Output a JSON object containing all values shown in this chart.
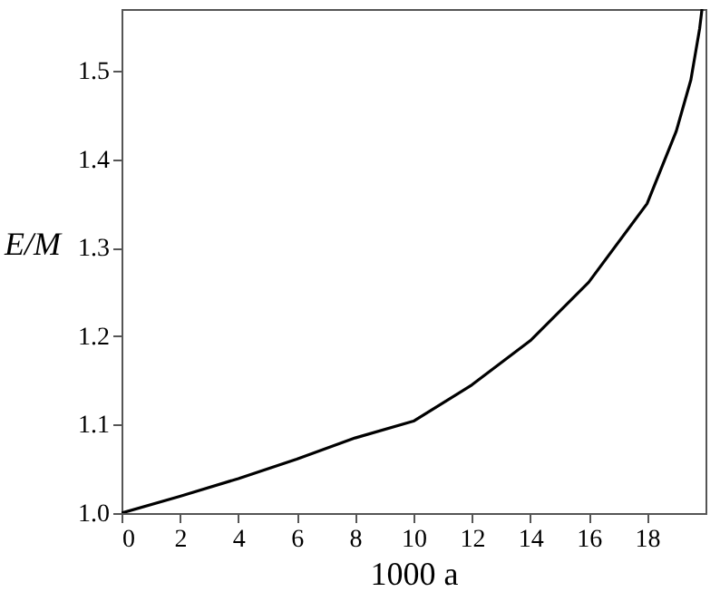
{
  "chart_data": {
    "type": "line",
    "xlabel": "1000 a",
    "ylabel": "E/M",
    "x": [
      0,
      2,
      4,
      6,
      8,
      10,
      12,
      14,
      16,
      18,
      19,
      19.5,
      19.8,
      19.88
    ],
    "series": [
      {
        "color": "#000000",
        "values": [
          1.0,
          1.019,
          1.039,
          1.061,
          1.085,
          1.104,
          1.145,
          1.195,
          1.261,
          1.35,
          1.432,
          1.49,
          1.548,
          1.57
        ]
      }
    ],
    "xlim": [
      0,
      20
    ],
    "xticks": [
      0,
      2,
      4,
      6,
      8,
      10,
      12,
      14,
      16,
      18
    ],
    "ylim": [
      1.0,
      1.57
    ],
    "yticks": [
      {
        "value": 1.0,
        "label": "1.0"
      },
      {
        "value": 1.1,
        "label": "1.1"
      },
      {
        "value": 1.2,
        "label": "1.2"
      },
      {
        "value": 1.3,
        "label": "1.3"
      },
      {
        "value": 1.4,
        "label": "1.4"
      },
      {
        "value": 1.5,
        "label": "1.5"
      }
    ],
    "grid": false,
    "legend": false,
    "marker": "none",
    "line_style": "solid"
  }
}
